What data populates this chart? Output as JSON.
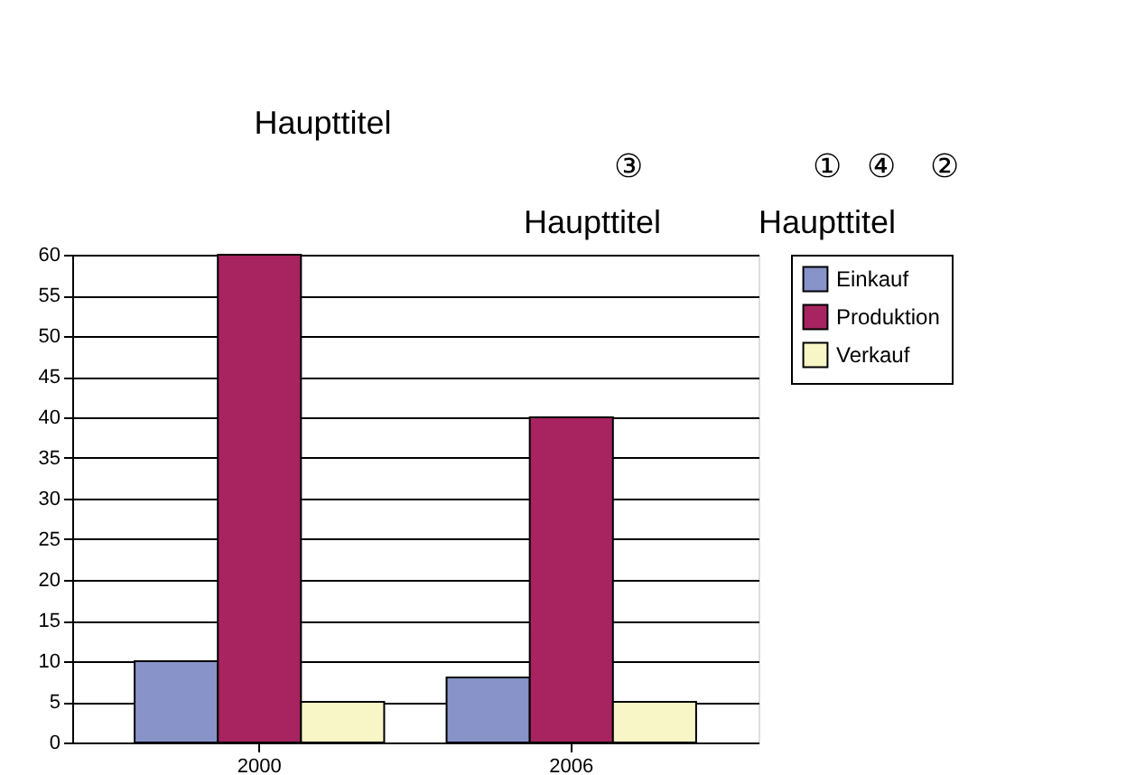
{
  "chart_data": {
    "type": "bar",
    "title": "Haupttitel",
    "annotations": [
      "Haupttitel",
      "Haupttitel",
      "③",
      "①",
      "④",
      "②"
    ],
    "categories": [
      "2000",
      "2006"
    ],
    "series": [
      {
        "name": "Einkauf",
        "color": "#8793c9",
        "values": [
          10,
          8
        ]
      },
      {
        "name": "Produktion",
        "color": "#a72460",
        "values": [
          60,
          40
        ]
      },
      {
        "name": "Verkauf",
        "color": "#f8f6c6",
        "values": [
          5,
          5
        ]
      }
    ],
    "ylim": [
      0,
      60
    ],
    "yticks": [
      0,
      5,
      10,
      15,
      20,
      25,
      30,
      35,
      40,
      45,
      50,
      55,
      60
    ],
    "grid": "y",
    "legend": "right"
  }
}
